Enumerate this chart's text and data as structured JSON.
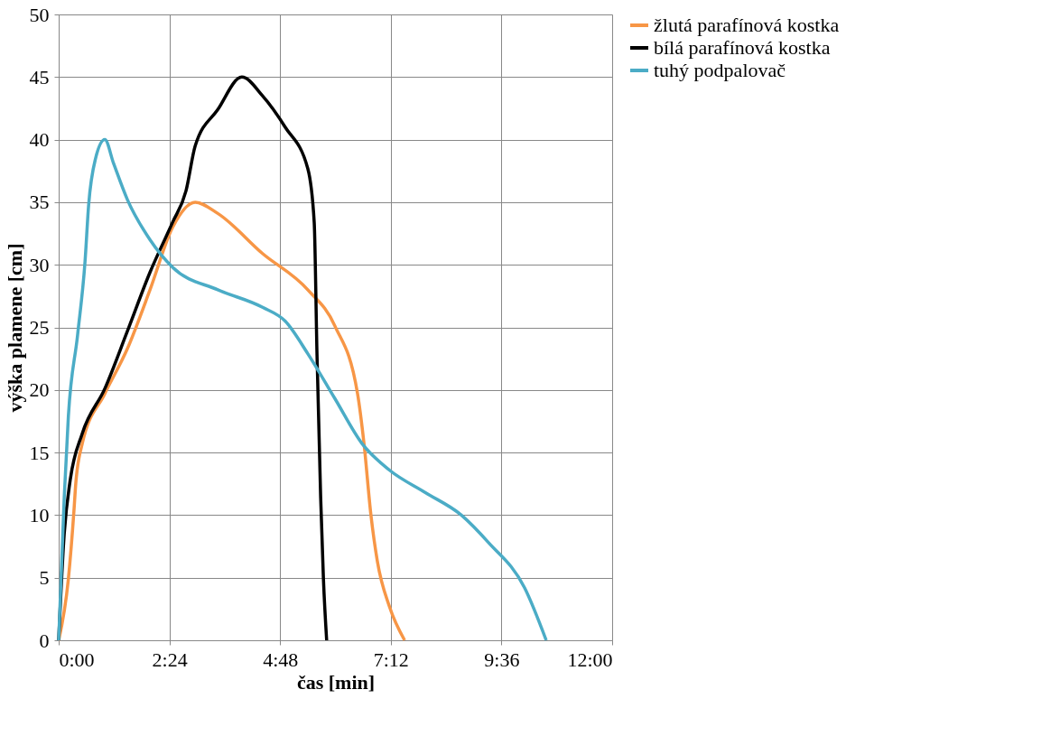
{
  "chart_data": {
    "type": "line",
    "xlabel": "čas [min]",
    "ylabel": "výška plamene [cm]",
    "xlim": [
      0,
      12
    ],
    "xticks": [
      {
        "value": 0,
        "label": "0:00"
      },
      {
        "value": 2.4,
        "label": "2:24"
      },
      {
        "value": 4.8,
        "label": "4:48"
      },
      {
        "value": 7.2,
        "label": "7:12"
      },
      {
        "value": 9.6,
        "label": "9:36"
      },
      {
        "value": 12,
        "label": "12:00"
      }
    ],
    "ylim": [
      0,
      50
    ],
    "yticks": [
      0,
      5,
      10,
      15,
      20,
      25,
      30,
      35,
      40,
      45,
      50
    ],
    "grid": true,
    "legend": "right",
    "marker": "none",
    "line_style": "solid",
    "series": [
      {
        "name": "žlutá parafínová kostka",
        "color": "#f79646",
        "x": [
          0,
          0.21,
          0.33,
          0.37,
          0.51,
          1.0,
          1.49,
          1.98,
          2.47,
          2.96,
          3.45,
          4.42,
          5.4,
          5.99,
          6.48,
          6.62,
          6.77,
          6.91,
          7.17,
          7.5
        ],
        "values": [
          0,
          4.9,
          10.3,
          12.5,
          15.7,
          19.7,
          23.3,
          28,
          33,
          35,
          34.1,
          30.9,
          28,
          25.1,
          19.7,
          15.7,
          10,
          6.3,
          2.7,
          0
        ]
      },
      {
        "name": "bílá parafínová kostka",
        "color": "#000000",
        "x": [
          0,
          0.12,
          0.25,
          0.51,
          1.0,
          1.49,
          1.98,
          2.47,
          2.76,
          2.96,
          3.45,
          3.97,
          4.42,
          4.91,
          5.4,
          5.54,
          5.6,
          5.68,
          5.74,
          5.81
        ],
        "values": [
          0,
          8.5,
          12.8,
          16.5,
          20.1,
          24.7,
          29.4,
          33.4,
          35.9,
          39.5,
          42.4,
          45,
          43.5,
          41,
          37.7,
          33.4,
          22.9,
          11.4,
          4.9,
          0
        ]
      },
      {
        "name": "tuhý podpalovač",
        "color": "#4bacc6",
        "x": [
          0,
          0.12,
          0.21,
          0.41,
          0.57,
          0.65,
          0.8,
          1.0,
          1.19,
          1.49,
          1.98,
          2.47,
          3.45,
          4.42,
          4.91,
          5.4,
          5.99,
          6.58,
          7.17,
          7.95,
          8.73,
          9.32,
          10.1,
          10.57
        ],
        "values": [
          0,
          11.4,
          17.9,
          24.4,
          30.2,
          34.8,
          38.5,
          40,
          38.1,
          35.2,
          32,
          29.8,
          28,
          26.6,
          25.5,
          22.9,
          19.3,
          15.7,
          13.6,
          11.8,
          10,
          7.8,
          4.2,
          0
        ]
      }
    ]
  }
}
